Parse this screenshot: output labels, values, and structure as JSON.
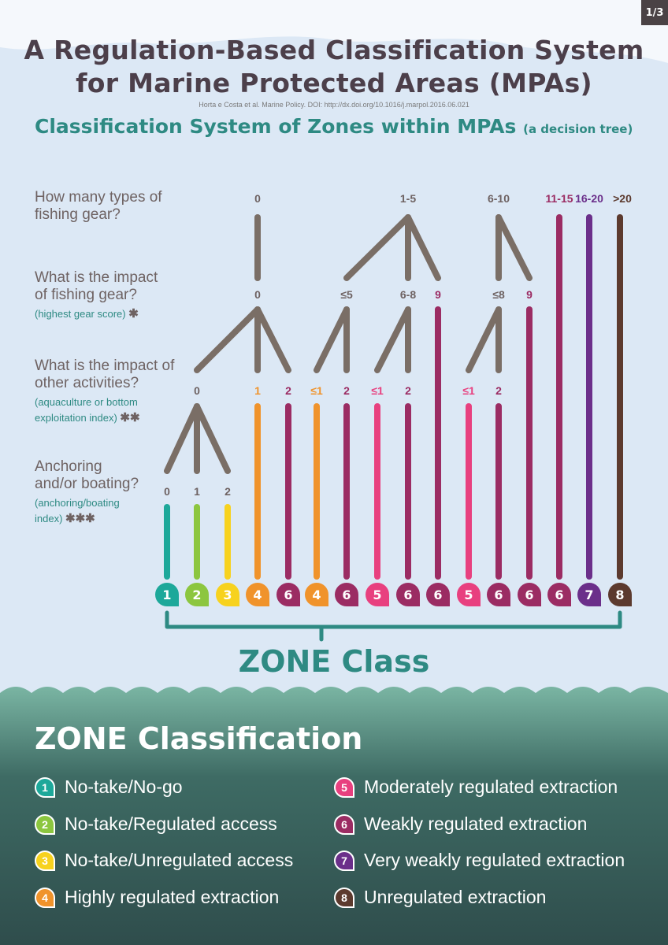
{
  "page_badge": "1/3",
  "title_line1": "A Regulation-Based Classification System",
  "title_line2": "for Marine Protected Areas (MPAs)",
  "citation": "Horta e Costa et al. Marine Policy. DOI: http://dx.doi.org/10.1016/j.marpol.2016.06.021",
  "subtitle": "Classification System of Zones within MPAs",
  "subtitle_small": "(a decision tree)",
  "questions": {
    "q1": {
      "line1": "How many types of",
      "line2": "fishing gear?"
    },
    "q2": {
      "line1": "What is the impact",
      "line2": "of fishing gear?",
      "note": "(highest gear score)",
      "mark": "✱"
    },
    "q3": {
      "line1": "What is the impact of",
      "line2": "other activities?",
      "note1": "(aquaculture or bottom",
      "note2": "exploitation index)",
      "mark": "✱✱"
    },
    "q4": {
      "line1": "Anchoring",
      "line2": "and/or boating?",
      "note1": "(anchoring/boating",
      "note2": "index)",
      "mark": "✱✱✱"
    }
  },
  "tree": {
    "level1": [
      {
        "text": "0",
        "color": "#6e6262"
      },
      {
        "text": "1-5",
        "color": "#6e6262"
      },
      {
        "text": "6-10",
        "color": "#6e6262"
      },
      {
        "text": "11-15",
        "color": "#9b2c63"
      },
      {
        "text": "16-20",
        "color": "#6b2f8a"
      },
      {
        "text": ">20",
        "color": "#5c3a2e"
      }
    ],
    "level2": [
      {
        "text": "0",
        "color": "#6e6262"
      },
      {
        "text": "≤5",
        "color": "#6e6262"
      },
      {
        "text": "6-8",
        "color": "#6e6262"
      },
      {
        "text": "9",
        "color": "#9b2c63"
      },
      {
        "text": "≤8",
        "color": "#6e6262"
      },
      {
        "text": "9",
        "color": "#9b2c63"
      }
    ],
    "level3": [
      {
        "text": "0",
        "color": "#6e6262"
      },
      {
        "text": "1",
        "color": "#f0932b"
      },
      {
        "text": "2",
        "color": "#9b2c63"
      },
      {
        "text": "≤1",
        "color": "#f0932b"
      },
      {
        "text": "2",
        "color": "#9b2c63"
      },
      {
        "text": "≤1",
        "color": "#e8407f"
      },
      {
        "text": "2",
        "color": "#9b2c63"
      },
      {
        "text": "≤1",
        "color": "#e8407f"
      },
      {
        "text": "2",
        "color": "#9b2c63"
      }
    ],
    "level4": [
      {
        "text": "0",
        "color": "#6e6262"
      },
      {
        "text": "1",
        "color": "#6e6262"
      },
      {
        "text": "2",
        "color": "#6e6262"
      }
    ]
  },
  "zone_row": [
    "1",
    "2",
    "3",
    "4",
    "6",
    "4",
    "6",
    "5",
    "6",
    "6",
    "5",
    "6",
    "6",
    "6",
    "7",
    "8"
  ],
  "zone_class_label": "ZONE Class",
  "classification_title": "ZONE Classification",
  "legend": [
    {
      "num": "1",
      "label": "No-take/No-go",
      "color": "#1da89a"
    },
    {
      "num": "2",
      "label": "No-take/Regulated access",
      "color": "#8cc63f"
    },
    {
      "num": "3",
      "label": "No-take/Unregulated access",
      "color": "#f7d21e"
    },
    {
      "num": "4",
      "label": "Highly regulated extraction",
      "color": "#f0932b"
    },
    {
      "num": "5",
      "label": "Moderately regulated extraction",
      "color": "#e8407f"
    },
    {
      "num": "6",
      "label": "Weakly regulated extraction",
      "color": "#9b2c63"
    },
    {
      "num": "7",
      "label": "Very weakly regulated extraction",
      "color": "#6b2f8a"
    },
    {
      "num": "8",
      "label": "Unregulated extraction",
      "color": "#5c3a2e"
    }
  ],
  "colors": {
    "branch": "#7a6e66",
    "teal": "#2e8a83",
    "sea_top": "#7ab5a3",
    "sea_bottom": "#2f4d4c",
    "sky": "#dce8f5"
  }
}
